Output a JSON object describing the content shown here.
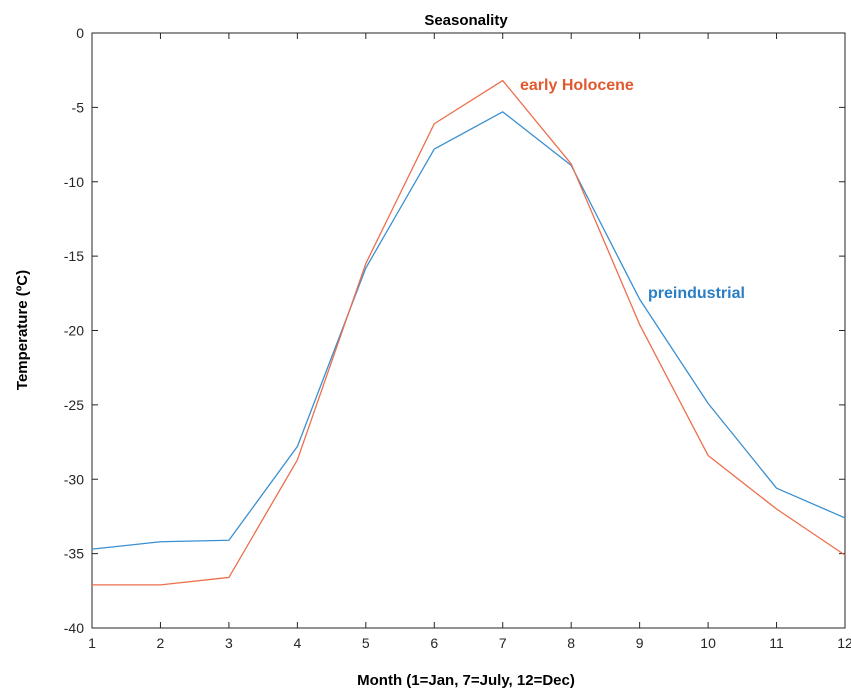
{
  "chart_data": {
    "type": "line",
    "title": "Seasonality",
    "xlabel": "Month (1=Jan, 7=July, 12=Dec)",
    "ylabel": "Temperature (ºC)",
    "xlim": [
      1,
      12
    ],
    "ylim": [
      -40,
      0
    ],
    "x": [
      1,
      2,
      3,
      4,
      5,
      6,
      7,
      8,
      9,
      10,
      11,
      12
    ],
    "xticks": [
      "1",
      "2",
      "3",
      "4",
      "5",
      "6",
      "7",
      "8",
      "9",
      "10",
      "11",
      "12"
    ],
    "yticks": [
      "0",
      "-5",
      "-10",
      "-15",
      "-20",
      "-25",
      "-30",
      "-35",
      "-40"
    ],
    "ytick_values": [
      0,
      -5,
      -10,
      -15,
      -20,
      -25,
      -30,
      -35,
      -40
    ],
    "grid": false,
    "series": [
      {
        "name": "preindustrial",
        "color": "#3a8fd0",
        "values": [
          -34.7,
          -34.2,
          -34.1,
          -27.8,
          -15.8,
          -7.8,
          -5.3,
          -8.9,
          -17.9,
          -24.9,
          -30.6,
          -32.6
        ]
      },
      {
        "name": "early Holocene",
        "color": "#ec6f4d",
        "values": [
          -37.1,
          -37.1,
          -36.6,
          -28.7,
          -15.5,
          -6.1,
          -3.2,
          -8.8,
          -19.6,
          -28.4,
          -32.0,
          -35.1
        ]
      }
    ]
  }
}
